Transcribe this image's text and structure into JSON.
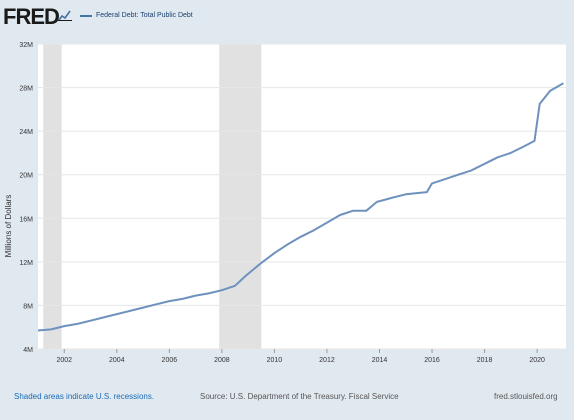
{
  "header": {
    "logo": "FRED",
    "legend_label": "Federal Debt: Total Public Debt"
  },
  "footer": {
    "note": "Shaded areas indicate U.S. recessions.",
    "source": "Source: U.S. Department of the Treasury. Fiscal Service",
    "site": "fred.stlouisfed.org"
  },
  "colors": {
    "line": "#6e91be",
    "recession": "#e1e1e1",
    "background": "#e1e9f0",
    "plot": "#ffffff"
  },
  "chart_data": {
    "type": "line",
    "title": "",
    "xlabel": "",
    "ylabel": "Millions of Dollars",
    "xlim": [
      2001.0,
      2021.1
    ],
    "ylim": [
      4,
      32
    ],
    "x_ticks": [
      2002,
      2004,
      2006,
      2008,
      2010,
      2012,
      2014,
      2016,
      2018,
      2020
    ],
    "y_ticks": [
      4,
      8,
      12,
      16,
      20,
      24,
      28,
      32
    ],
    "y_tick_labels": [
      "4M",
      "8M",
      "12M",
      "16M",
      "20M",
      "24M",
      "28M",
      "32M"
    ],
    "grid": true,
    "recessions": [
      [
        2001.2,
        2001.9
      ],
      [
        2007.9,
        2009.5
      ]
    ],
    "series": [
      {
        "name": "Federal Debt: Total Public Debt",
        "x": [
          2001.0,
          2001.5,
          2002.0,
          2002.5,
          2003.0,
          2003.5,
          2004.0,
          2004.5,
          2005.0,
          2005.5,
          2006.0,
          2006.5,
          2007.0,
          2007.5,
          2008.0,
          2008.5,
          2008.9,
          2009.5,
          2010.0,
          2010.5,
          2011.0,
          2011.5,
          2012.0,
          2012.5,
          2013.0,
          2013.5,
          2013.9,
          2014.5,
          2015.0,
          2015.8,
          2016.0,
          2016.5,
          2017.0,
          2017.5,
          2018.0,
          2018.5,
          2019.0,
          2019.5,
          2019.9,
          2020.1,
          2020.5,
          2021.0
        ],
        "y": [
          5.7,
          5.8,
          6.1,
          6.3,
          6.6,
          6.9,
          7.2,
          7.5,
          7.8,
          8.1,
          8.4,
          8.6,
          8.9,
          9.1,
          9.4,
          9.8,
          10.7,
          11.9,
          12.8,
          13.6,
          14.3,
          14.9,
          15.6,
          16.3,
          16.7,
          16.7,
          17.5,
          17.9,
          18.2,
          18.4,
          19.2,
          19.6,
          20.0,
          20.4,
          21.0,
          21.6,
          22.0,
          22.6,
          23.1,
          26.5,
          27.7,
          28.4
        ]
      }
    ]
  }
}
